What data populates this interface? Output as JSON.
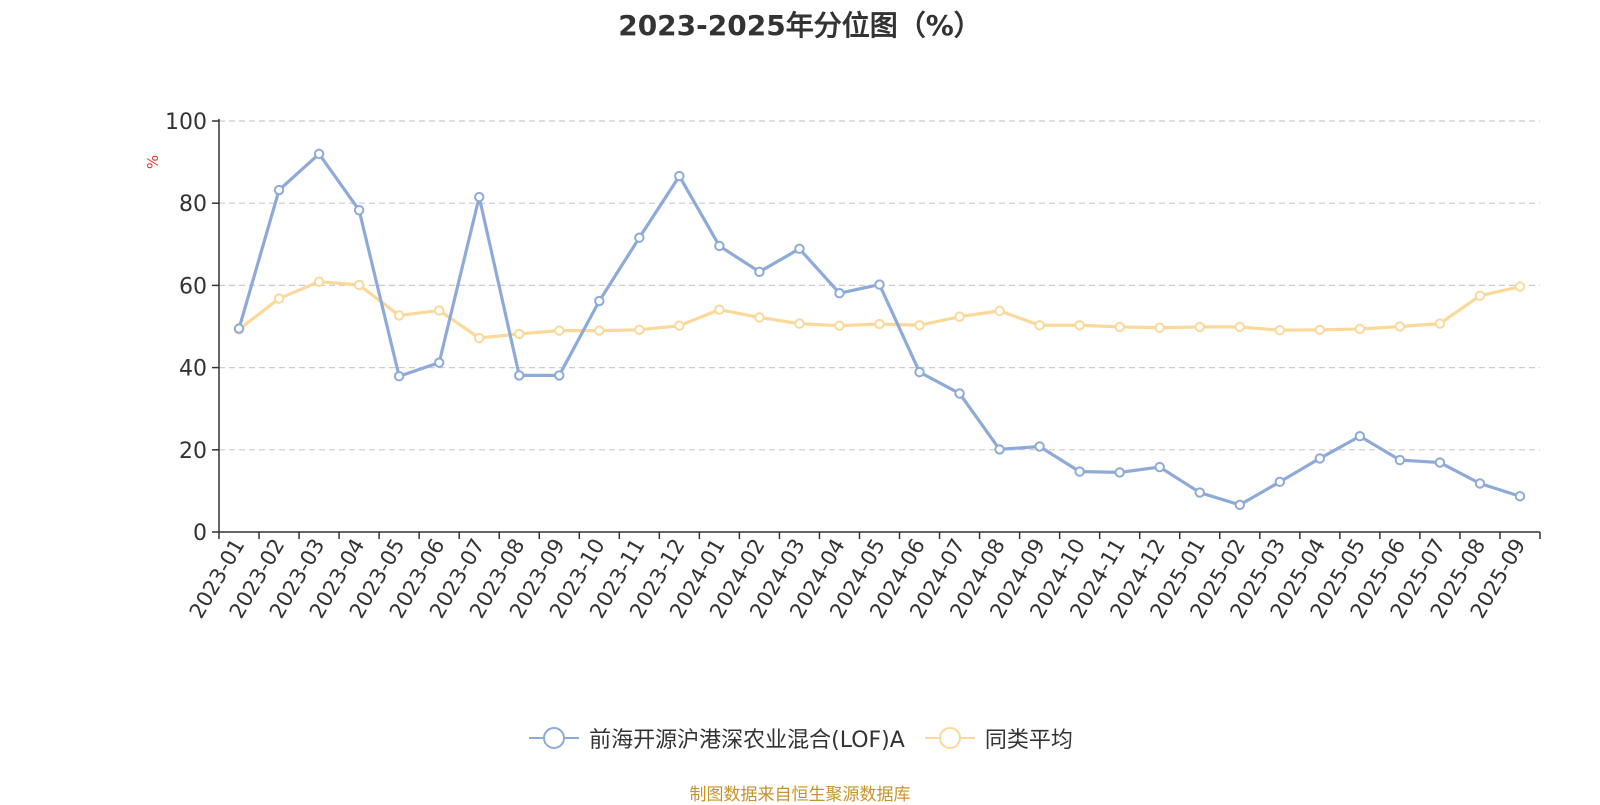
{
  "title": "2023-2025年分位图（%）",
  "source": "制图数据来自恒生聚源数据库",
  "colors": {
    "series1": "#8eaad8",
    "series2": "#fbd99a",
    "grid": "#cccccc",
    "axis": "#333333",
    "unit": "#e8392f"
  },
  "legend": [
    {
      "name": "前海开源沪港深农业混合(LOF)A"
    },
    {
      "name": "同类平均"
    }
  ],
  "chart_data": {
    "type": "line",
    "title": "2023-2025年分位图（%）",
    "ylabel": "%",
    "ylim": [
      0,
      100
    ],
    "yticks": [
      "0",
      "20",
      "40",
      "60",
      "80",
      "100"
    ],
    "grid": true,
    "legend_position": "bottom",
    "categories": [
      "2023-01",
      "2023-02",
      "2023-03",
      "2023-04",
      "2023-05",
      "2023-06",
      "2023-07",
      "2023-08",
      "2023-09",
      "2023-10",
      "2023-11",
      "2023-12",
      "2024-01",
      "2024-02",
      "2024-03",
      "2024-04",
      "2024-05",
      "2024-06",
      "2024-07",
      "2024-08",
      "2024-09",
      "2024-10",
      "2024-11",
      "2024-12",
      "2025-01",
      "2025-02",
      "2025-03",
      "2025-04",
      "2025-05",
      "2025-06",
      "2025-07",
      "2025-08",
      "2025-09"
    ],
    "series": [
      {
        "name": "前海开源沪港深农业混合(LOF)A",
        "values": [
          49.5,
          83.2,
          92.0,
          78.3,
          37.9,
          41.2,
          81.5,
          38.1,
          38.1,
          56.2,
          71.6,
          86.6,
          69.6,
          63.3,
          68.9,
          58.1,
          60.2,
          38.9,
          33.7,
          20.1,
          20.8,
          14.7,
          14.5,
          15.8,
          9.6,
          6.6,
          12.2,
          17.9,
          23.3,
          17.5,
          16.9,
          11.8,
          8.7
        ]
      },
      {
        "name": "同类平均",
        "values": [
          49.3,
          56.8,
          60.9,
          60.1,
          52.7,
          53.9,
          47.2,
          48.2,
          49.0,
          49.0,
          49.2,
          50.2,
          54.1,
          52.2,
          50.7,
          50.2,
          50.6,
          50.3,
          52.4,
          53.8,
          50.3,
          50.3,
          49.9,
          49.7,
          49.9,
          49.9,
          49.1,
          49.2,
          49.4,
          50.0,
          50.7,
          57.5,
          59.7
        ]
      }
    ]
  }
}
